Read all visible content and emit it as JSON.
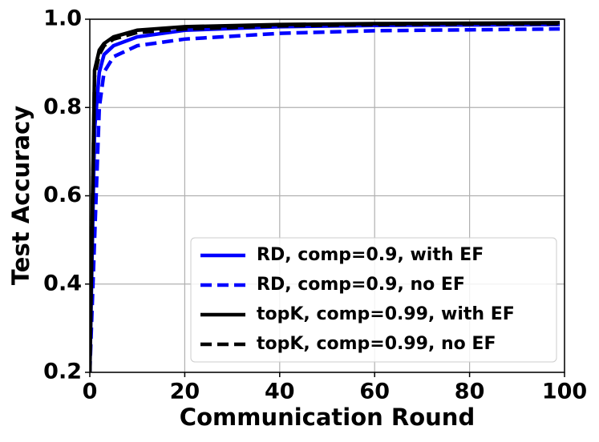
{
  "chart_data": {
    "type": "line",
    "xlabel": "Communication Round",
    "ylabel": "Test Accuracy",
    "x": [
      0,
      1,
      2,
      3,
      5,
      10,
      20,
      40,
      60,
      80,
      99
    ],
    "series": [
      {
        "name": "RD, comp=0.9, with EF",
        "color": "#0000ff",
        "linestyle": "solid",
        "values": [
          0.2,
          0.75,
          0.88,
          0.92,
          0.94,
          0.96,
          0.975,
          0.983,
          0.986,
          0.987,
          0.988
        ]
      },
      {
        "name": "RD, comp=0.9, no EF",
        "color": "#0000ff",
        "linestyle": "dashed",
        "values": [
          0.2,
          0.5,
          0.8,
          0.88,
          0.915,
          0.94,
          0.955,
          0.968,
          0.974,
          0.976,
          0.978
        ]
      },
      {
        "name": "topK, comp=0.99, with EF",
        "color": "#000000",
        "linestyle": "solid",
        "values": [
          0.2,
          0.884,
          0.93,
          0.945,
          0.96,
          0.975,
          0.983,
          0.988,
          0.99,
          0.991,
          0.992
        ]
      },
      {
        "name": "topK, comp=0.99, no EF",
        "color": "#000000",
        "linestyle": "dashed",
        "values": [
          0.2,
          0.87,
          0.92,
          0.94,
          0.955,
          0.97,
          0.978,
          0.985,
          0.988,
          0.989,
          0.99
        ]
      }
    ],
    "xlim": [
      0,
      100
    ],
    "xticks": [
      0,
      20,
      40,
      60,
      80,
      100
    ],
    "ylim": [
      0.2,
      1.0
    ],
    "yticks": [
      0.2,
      0.4,
      0.6,
      0.8,
      {
        "value": 1.0,
        "label": "1.0"
      }
    ],
    "grid": true,
    "legend": "lower right"
  }
}
